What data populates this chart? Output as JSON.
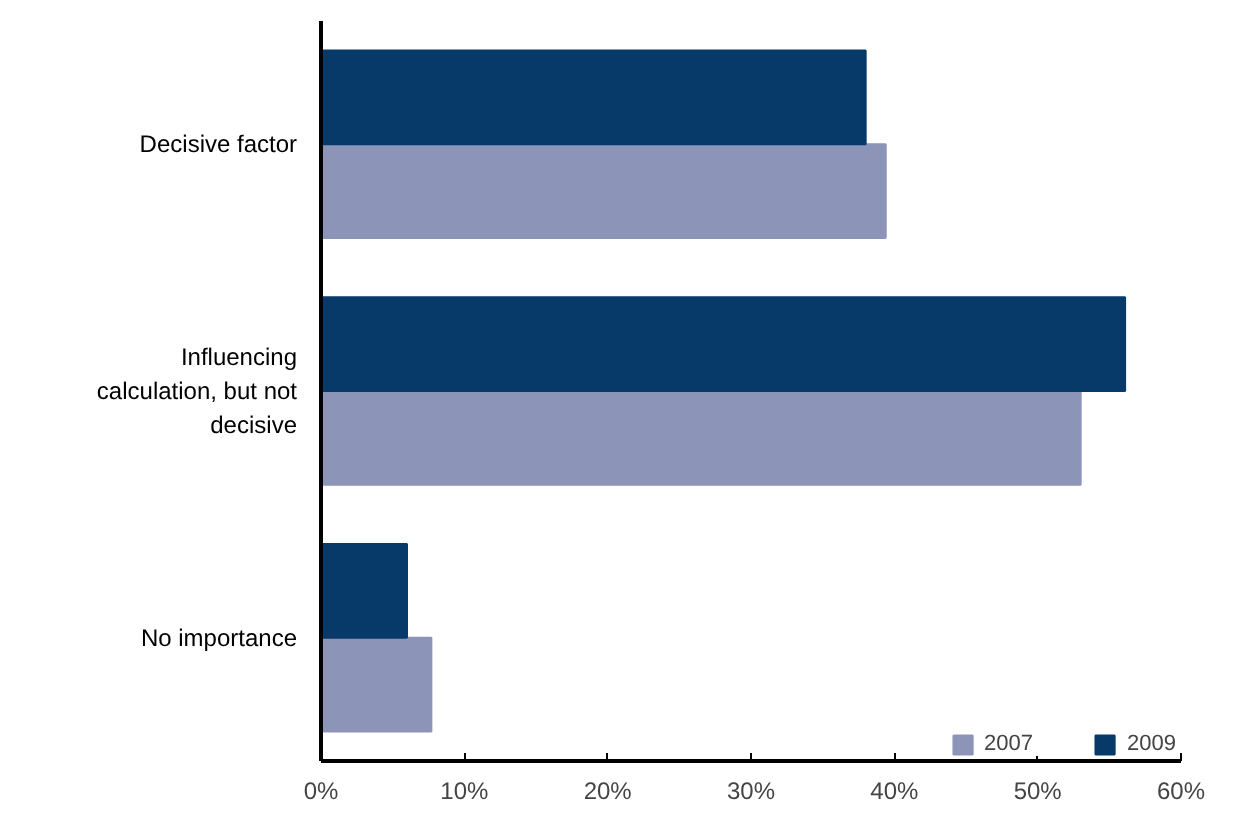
{
  "chart_data": {
    "type": "bar",
    "orientation": "horizontal",
    "categories": [
      "Decisive factor",
      "Influencing\ncalculation, but not\ndecisive",
      "No importance"
    ],
    "series": [
      {
        "name": "2007",
        "color": "#8c94b7",
        "values": [
          39.4,
          53.0,
          7.7
        ]
      },
      {
        "name": "2009",
        "color": "#083a69",
        "values": [
          38.0,
          56.1,
          6.0
        ]
      }
    ],
    "xlim": [
      0,
      60
    ],
    "xticks": [
      {
        "value": 0,
        "label": "0%"
      },
      {
        "value": 10,
        "label": "10%"
      },
      {
        "value": 20,
        "label": "20%"
      },
      {
        "value": 30,
        "label": "30%"
      },
      {
        "value": 40,
        "label": "40%"
      },
      {
        "value": 50,
        "label": "50%"
      },
      {
        "value": 60,
        "label": "60%"
      }
    ],
    "grid": false,
    "legend": "bottom right"
  }
}
